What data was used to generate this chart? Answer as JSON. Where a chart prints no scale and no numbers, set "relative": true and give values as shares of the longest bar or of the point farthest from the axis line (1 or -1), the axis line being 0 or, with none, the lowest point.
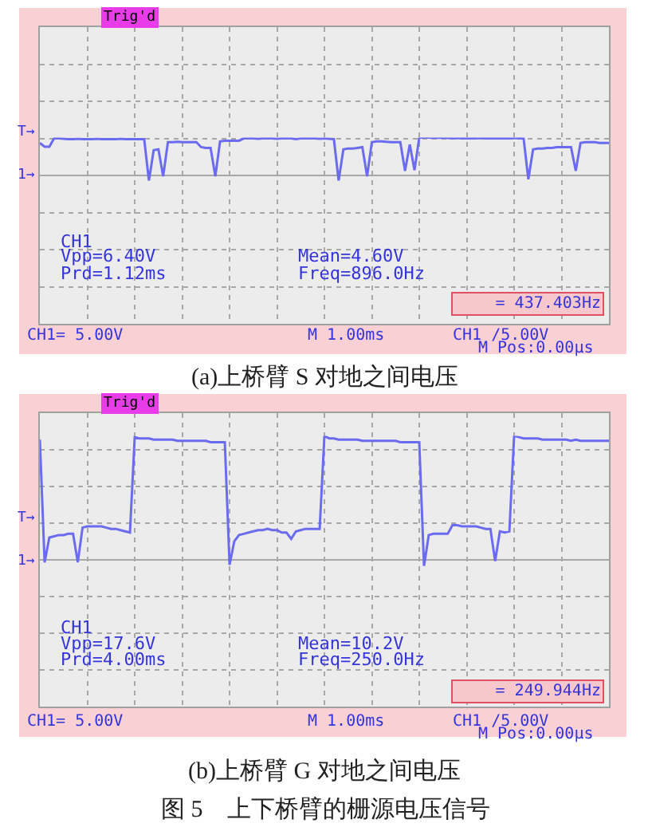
{
  "chart_data": [
    {
      "type": "line",
      "relative": true,
      "grid": true,
      "categories": [
        null,
        null,
        null,
        null,
        null,
        null,
        null,
        null,
        null,
        null,
        null,
        null,
        null,
        null,
        null,
        null,
        null,
        null,
        null,
        null,
        null,
        null,
        null,
        null,
        null,
        null,
        null,
        null,
        null,
        null,
        null,
        null,
        null,
        null,
        null,
        null,
        null,
        null,
        null,
        null,
        null,
        null,
        null,
        null,
        null,
        null,
        null,
        null,
        null,
        null,
        null,
        null,
        null,
        null,
        null,
        null,
        null,
        null,
        null,
        null,
        null,
        null,
        null,
        null,
        null,
        null,
        null,
        null,
        null,
        null,
        null,
        null,
        null,
        null,
        null,
        null,
        null,
        null,
        null,
        null,
        null,
        null,
        null,
        null,
        null,
        null,
        null,
        null,
        null,
        null,
        null,
        null,
        null,
        null,
        null,
        null,
        null,
        null,
        null,
        null,
        null,
        null,
        null,
        null,
        null,
        null,
        null,
        null,
        null,
        null,
        null,
        null,
        null,
        null,
        null,
        null,
        null,
        null,
        null,
        null,
        null
      ],
      "series": [
        {
          "color": "#6b6bf0",
          "values": [
            0.86,
            0.76,
            0.76,
            0.98,
            0.98,
            0.97,
            0.96,
            0.96,
            0.97,
            0.96,
            0.96,
            0.96,
            0.97,
            0.96,
            0.96,
            0.96,
            0.96,
            0.97,
            0.96,
            0.96,
            0.96,
            0.96,
            0.96,
            -0.14,
            0.67,
            0.69,
            -0.02,
            0.88,
            0.88,
            0.89,
            0.88,
            0.88,
            0.88,
            0.88,
            0.75,
            0.73,
            0.73,
            -0.02,
            0.9,
            0.92,
            0.92,
            0.92,
            0.92,
            0.98,
            0.98,
            0.98,
            0.97,
            0.98,
            0.98,
            0.98,
            0.97,
            0.98,
            0.98,
            0.98,
            0.96,
            0.98,
            0.98,
            0.98,
            0.98,
            0.97,
            0.98,
            0.97,
            0.96,
            -0.14,
            0.69,
            0.71,
            0.71,
            0.73,
            0.75,
            -0.02,
            0.88,
            0.9,
            0.9,
            0.89,
            0.88,
            0.88,
            0.88,
            0.12,
            0.82,
            0.14,
            1.0,
            1.0,
            1.0,
            0.99,
            1.0,
            0.99,
            0.99,
            0.98,
            0.99,
            0.98,
            0.98,
            0.98,
            0.98,
            0.99,
            0.98,
            0.98,
            0.98,
            0.98,
            0.98,
            0.98,
            0.99,
            0.98,
            0.98,
            -0.1,
            0.69,
            0.71,
            0.71,
            0.73,
            0.73,
            0.75,
            0.75,
            0.75,
            0.75,
            0.12,
            0.86,
            0.88,
            0.88,
            0.88,
            0.86,
            0.86,
            0.86
          ]
        }
      ],
      "annotations": [
        "Trig'd",
        "T→",
        "1→",
        "CH1",
        "Vpp=6.40V",
        "Prd=1.12ms",
        "Mean=4.60V",
        "Freq=896.0Hz",
        "= 437.403Hz",
        "CH1= 5.00V",
        "M 1.00ms",
        "CH1 /5.00V",
        "M Pos:0.00µs",
        "(a)上桥臂 S 对地之间电压"
      ]
    },
    {
      "type": "line",
      "relative": true,
      "grid": true,
      "categories": [
        null,
        null,
        null,
        null,
        null,
        null,
        null,
        null,
        null,
        null,
        null,
        null,
        null,
        null,
        null,
        null,
        null,
        null,
        null,
        null,
        null,
        null,
        null,
        null,
        null,
        null,
        null,
        null,
        null,
        null,
        null,
        null,
        null,
        null,
        null,
        null,
        null,
        null,
        null,
        null,
        null,
        null,
        null,
        null,
        null,
        null,
        null,
        null,
        null,
        null,
        null,
        null,
        null,
        null,
        null,
        null,
        null,
        null,
        null,
        null,
        null,
        null,
        null,
        null,
        null,
        null,
        null,
        null,
        null,
        null,
        null,
        null,
        null,
        null,
        null,
        null,
        null,
        null,
        null,
        null,
        null,
        null,
        null,
        null,
        null,
        null,
        null,
        null,
        null,
        null,
        null,
        null,
        null,
        null,
        null,
        null,
        null,
        null,
        null,
        null,
        null,
        null,
        null,
        null,
        null,
        null,
        null,
        null,
        null,
        null,
        null,
        null,
        null,
        null,
        null,
        null,
        null,
        null,
        null,
        null,
        null
      ],
      "series": [
        {
          "color": "#6b6bf0",
          "values": [
            0.97,
            -0.02,
            0.18,
            0.19,
            0.2,
            0.2,
            0.21,
            0.21,
            -0.02,
            0.26,
            0.27,
            0.27,
            0.27,
            0.27,
            0.26,
            0.25,
            0.25,
            0.24,
            0.23,
            0.22,
            0.99,
            0.98,
            0.98,
            0.98,
            0.97,
            0.97,
            0.97,
            0.97,
            0.97,
            0.96,
            0.96,
            0.96,
            0.96,
            0.96,
            0.96,
            0.96,
            0.95,
            0.95,
            0.95,
            0.95,
            -0.04,
            0.15,
            0.2,
            0.21,
            0.22,
            0.23,
            0.24,
            0.24,
            0.25,
            0.24,
            0.24,
            0.22,
            0.22,
            0.17,
            0.23,
            0.24,
            0.25,
            0.25,
            0.25,
            0.25,
            1.0,
            0.98,
            0.98,
            0.97,
            0.97,
            0.97,
            0.97,
            0.97,
            0.96,
            0.96,
            0.96,
            0.96,
            0.96,
            0.96,
            0.96,
            0.96,
            0.95,
            0.95,
            0.95,
            0.95,
            0.95,
            -0.05,
            0.2,
            0.21,
            0.21,
            0.21,
            0.21,
            0.28,
            0.28,
            0.27,
            0.27,
            0.27,
            0.27,
            0.26,
            0.25,
            0.25,
            -0.01,
            0.23,
            0.22,
            0.23,
            1.0,
            0.99,
            0.98,
            0.98,
            0.98,
            0.98,
            0.97,
            0.97,
            0.97,
            0.97,
            0.97,
            0.97,
            0.96,
            0.97,
            0.96,
            0.96,
            0.96,
            0.96,
            0.96,
            0.96,
            0.96
          ]
        }
      ],
      "annotations": [
        "Trig'd",
        "T→",
        "1→",
        "CH1",
        "Vpp=17.6V",
        "Prd=4.00ms",
        "Mean=10.2V",
        "Freq=250.0Hz",
        "= 249.944Hz",
        "CH1= 5.00V",
        "M 1.00ms",
        "CH1 /5.00V",
        "M Pos:0.00µs",
        "(b)上桥臂 G 对地之间电压",
        "图 5　上下桥臂的栅源电压信号"
      ]
    }
  ]
}
